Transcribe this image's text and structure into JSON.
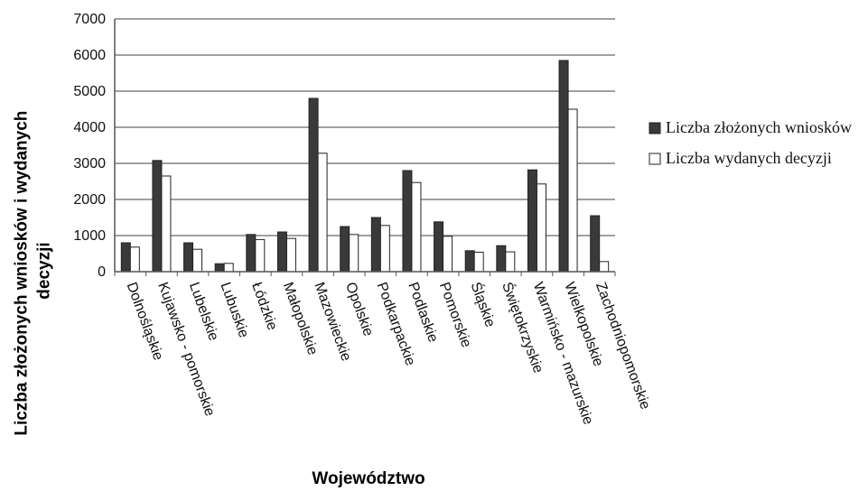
{
  "chart_data": {
    "type": "bar",
    "categories": [
      "Dolnośląskie",
      "Kujawsko - pomorskie",
      "Lubelskie",
      "Lubuskie",
      "Łódzkie",
      "Małopolskie",
      "Mazowieckie",
      "Opolskie",
      "Podkarpackie",
      "Podlaskie",
      "Pomorskie",
      "Śląskie",
      "Świętokrzyskie",
      "Warmińsko - mazurskie",
      "Wielkopolskie",
      "Zachodniopomorskie"
    ],
    "series": [
      {
        "name": "Liczba złożonych wniosków",
        "values": [
          800,
          3080,
          800,
          220,
          1030,
          1100,
          4800,
          1250,
          1500,
          2800,
          1380,
          580,
          720,
          2820,
          5850,
          1550
        ],
        "color": "#3a3a3a"
      },
      {
        "name": "Liczba wydanych decyzji",
        "values": [
          680,
          2650,
          620,
          230,
          890,
          920,
          3280,
          1030,
          1280,
          2470,
          980,
          540,
          550,
          2430,
          4500,
          280
        ],
        "color": "#ffffff"
      }
    ],
    "xlabel": "Województwo",
    "ylabel": "Liczba złożonych wniosków i wydanych decyzji",
    "ylim": [
      0,
      7000
    ],
    "yticks": [
      "0",
      "1000",
      "2000",
      "3000",
      "4000",
      "5000",
      "6000",
      "7000"
    ],
    "grid": true,
    "legend": "right"
  }
}
